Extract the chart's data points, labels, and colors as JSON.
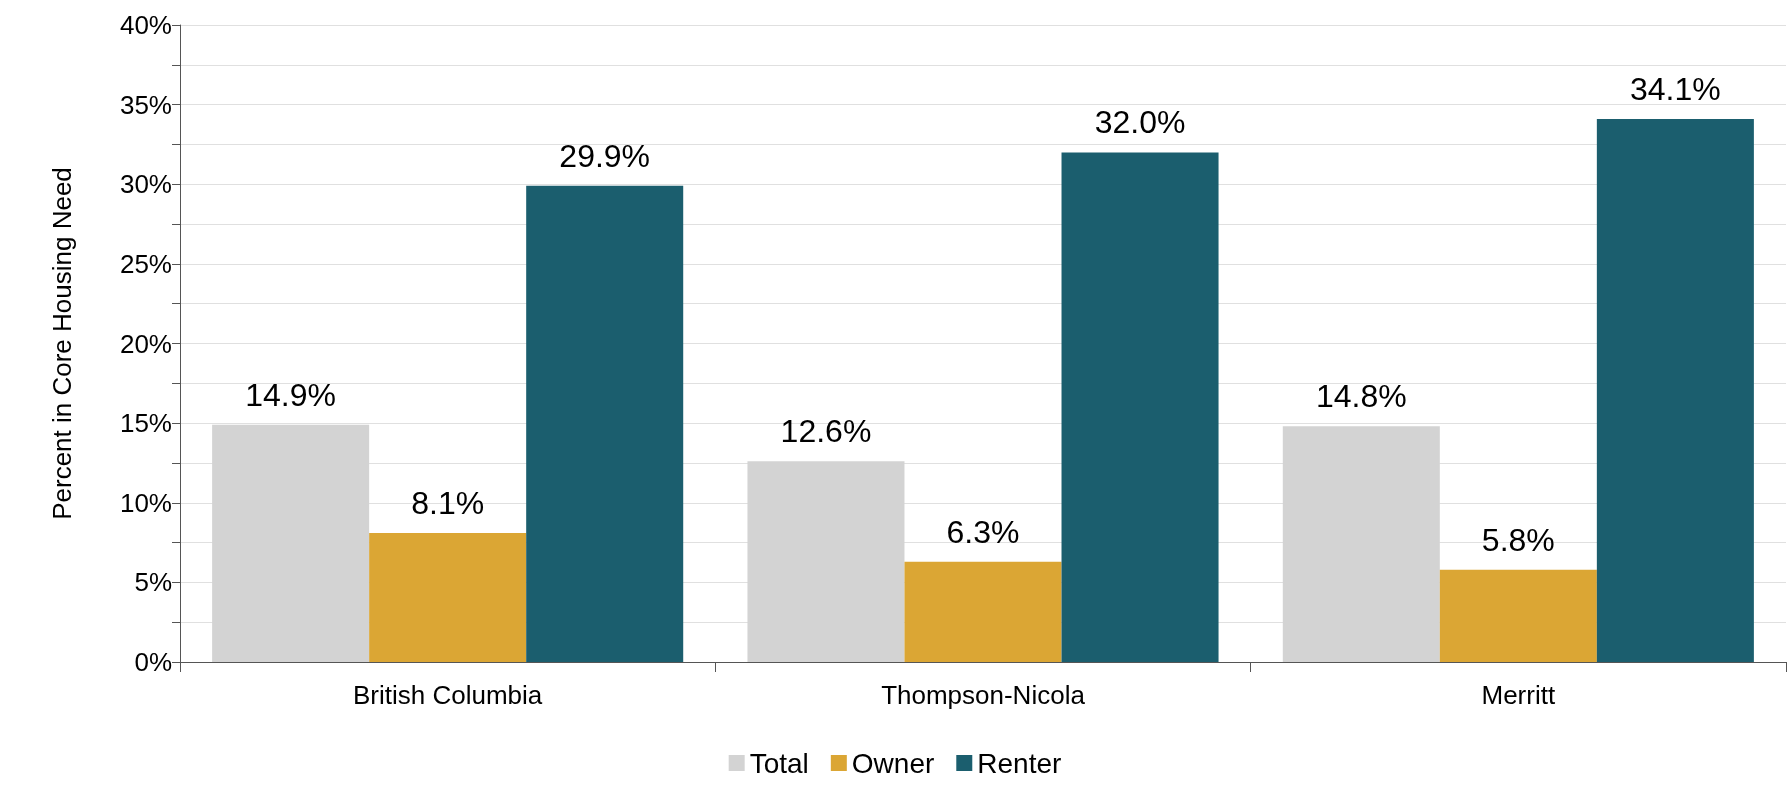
{
  "chart_data": {
    "type": "bar",
    "ylabel": "Percent in Core Housing Need",
    "categories": [
      "British Columbia",
      "Thompson-Nicola",
      "Merritt"
    ],
    "series": [
      {
        "name": "Total",
        "color": "#d3d3d3",
        "values": [
          14.9,
          12.6,
          14.8
        ],
        "value_labels": [
          "14.9%",
          "12.6%",
          "14.8%"
        ]
      },
      {
        "name": "Owner",
        "color": "#dba634",
        "values": [
          8.1,
          6.3,
          5.8
        ],
        "value_labels": [
          "8.1%",
          "6.3%",
          "5.8%"
        ]
      },
      {
        "name": "Renter",
        "color": "#1b5e6e",
        "values": [
          29.9,
          32.0,
          34.1
        ],
        "value_labels": [
          "29.9%",
          "32.0%",
          "34.1%"
        ]
      }
    ],
    "ylim": [
      0,
      40
    ],
    "yticks": [
      {
        "value": 0,
        "label": "0%"
      },
      {
        "value": 2.5,
        "label": null
      },
      {
        "value": 5,
        "label": "5%"
      },
      {
        "value": 7.5,
        "label": null
      },
      {
        "value": 10,
        "label": "10%"
      },
      {
        "value": 12.5,
        "label": null
      },
      {
        "value": 15,
        "label": "15%"
      },
      {
        "value": 17.5,
        "label": null
      },
      {
        "value": 20,
        "label": "20%"
      },
      {
        "value": 22.5,
        "label": null
      },
      {
        "value": 25,
        "label": "25%"
      },
      {
        "value": 27.5,
        "label": null
      },
      {
        "value": 30,
        "label": "30%"
      },
      {
        "value": 32.5,
        "label": null
      },
      {
        "value": 35,
        "label": "35%"
      },
      {
        "value": 37.5,
        "label": null
      },
      {
        "value": 40,
        "label": "40%"
      }
    ],
    "grid": true,
    "legend": "bottom"
  }
}
